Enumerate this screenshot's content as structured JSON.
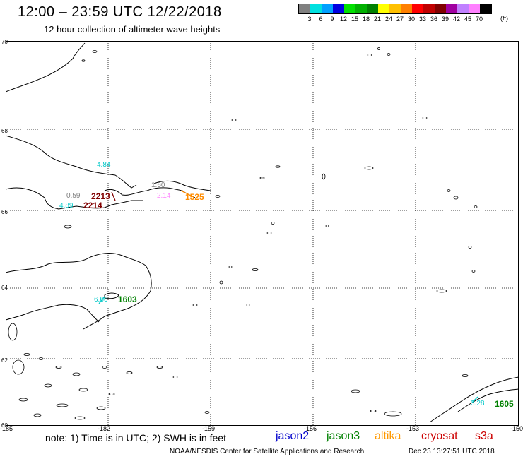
{
  "header": {
    "title": "12:00 – 23:59 UTC 12/22/2018",
    "subtitle": "12 hour collection of altimeter wave heights"
  },
  "scale": {
    "colors": [
      "#808080",
      "#00e0e0",
      "#00a0ff",
      "#0000e0",
      "#00e000",
      "#00b000",
      "#008000",
      "#ffff00",
      "#ffc000",
      "#ff8000",
      "#ff0000",
      "#c00000",
      "#800000",
      "#a000a0",
      "#c080ff",
      "#ff80ff",
      "#000000"
    ],
    "labels": [
      "3",
      "6",
      "9",
      "12",
      "15",
      "18",
      "21",
      "24",
      "27",
      "30",
      "33",
      "36",
      "39",
      "42",
      "45",
      "70"
    ],
    "unit": "(ft)"
  },
  "map": {
    "lat_labels": [
      "70",
      "68",
      "66",
      "64",
      "62",
      "60"
    ],
    "lon_labels": [
      "-185",
      "-182",
      "-159",
      "-156",
      "-153",
      "-150"
    ]
  },
  "observations": [
    {
      "text": "4.84",
      "color": "#00c8c8"
    },
    {
      "text": "1.60",
      "color": "#808080"
    },
    {
      "text": "0.59",
      "color": "#808080"
    },
    {
      "text": "2213",
      "color": "#800000"
    },
    {
      "text": "4.89",
      "color": "#00c8c8"
    },
    {
      "text": "2214",
      "color": "#800000"
    },
    {
      "text": "1525",
      "color": "#ff8c00"
    },
    {
      "text": "2.14",
      "color": "#ff80ff"
    },
    {
      "text": "6.66",
      "color": "#00c8c8"
    },
    {
      "text": "1603",
      "color": "#008000"
    },
    {
      "text": "3.28",
      "color": "#00c8c8"
    },
    {
      "text": "1605",
      "color": "#008000"
    }
  ],
  "footer": {
    "note": "note:  1) Time is in UTC;  2) SWH is in feet",
    "satellites": [
      {
        "name": "jason2",
        "color": "#0000cc"
      },
      {
        "name": "jason3",
        "color": "#008000"
      },
      {
        "name": "altika",
        "color": "#ff9900"
      },
      {
        "name": "cryosat",
        "color": "#cc0000"
      },
      {
        "name": "s3a",
        "color": "#cc0000"
      }
    ],
    "credit": "NOAA/NESDIS Center for Satellite Applications and Research",
    "timestamp": "Dec 23 13:27:51 UTC 2018"
  }
}
